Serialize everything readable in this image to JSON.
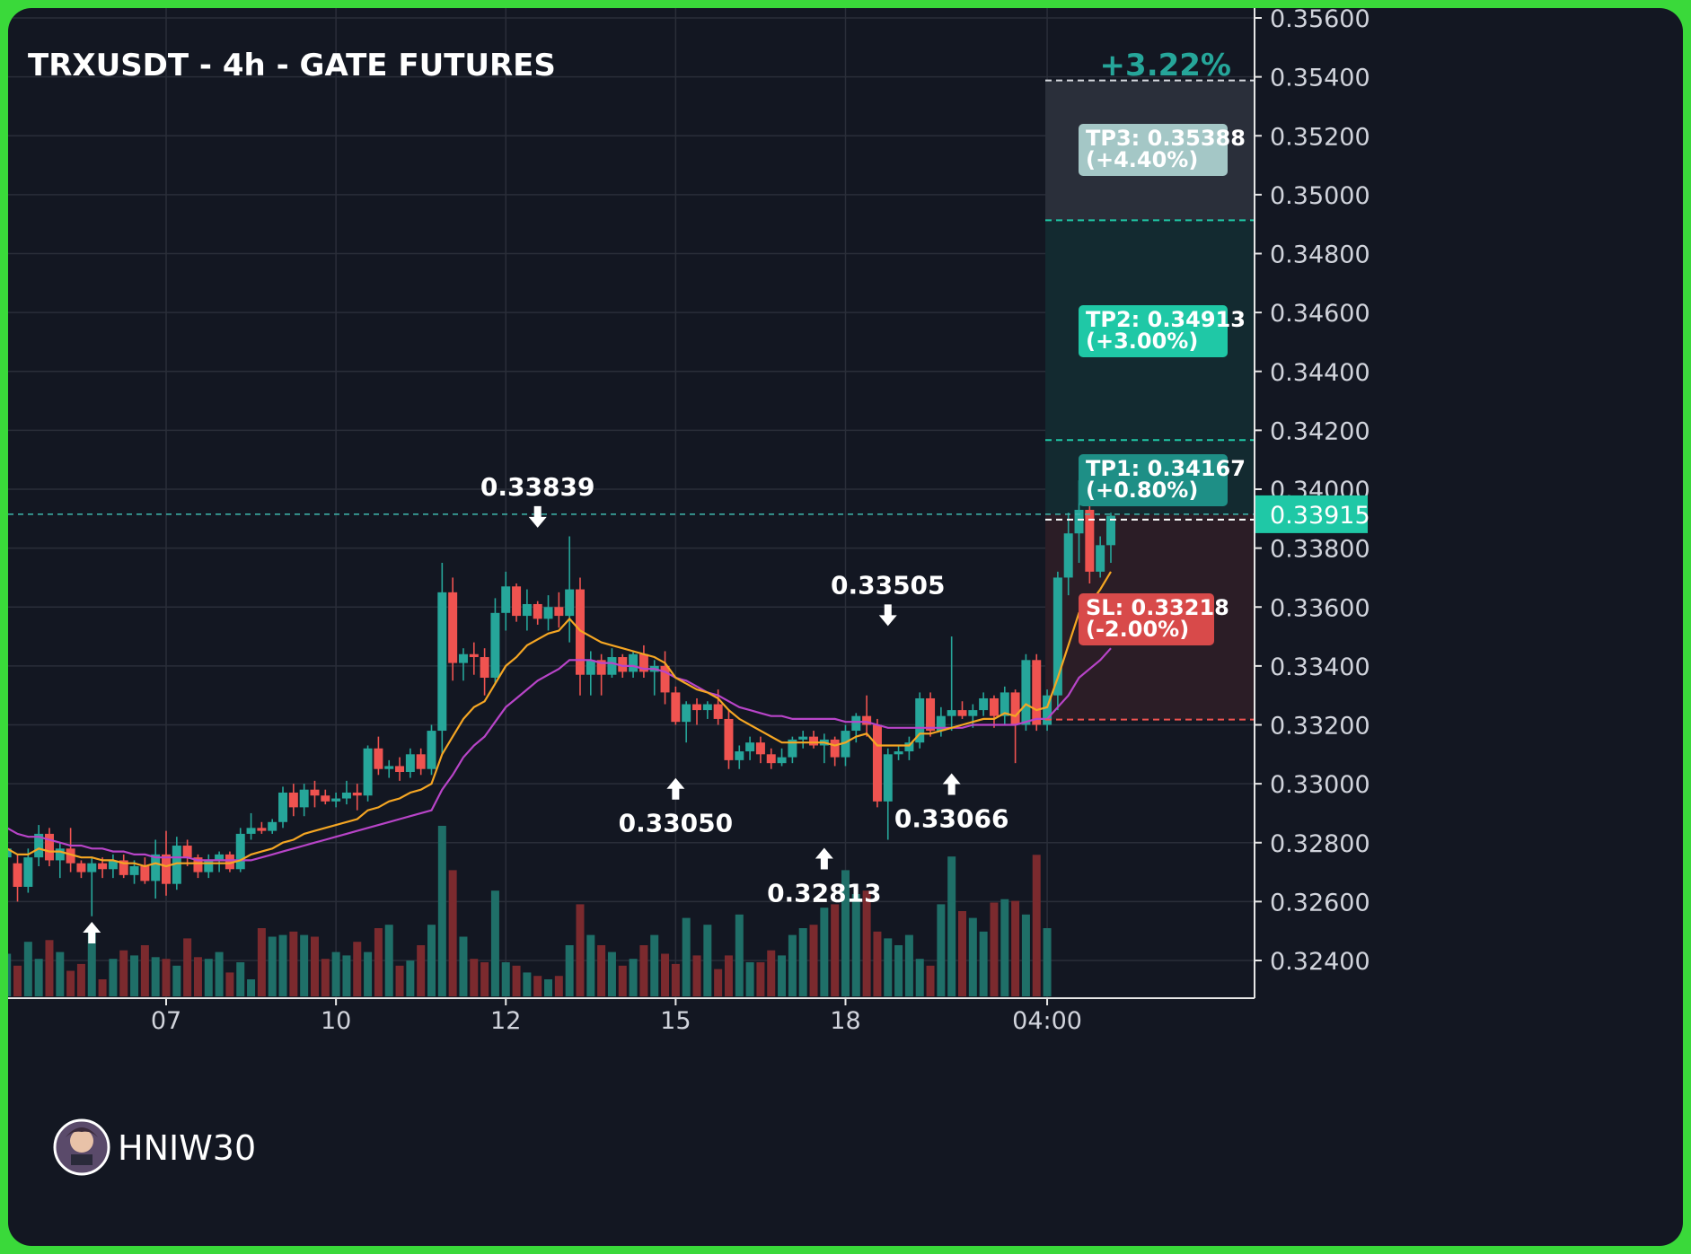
{
  "title": "TRXUSDT - 4h - GATE FUTURES",
  "change_badge": "+3.22%",
  "current_price_label": "0.33915",
  "watermark": "HNIW30",
  "colors": {
    "background": "#131722",
    "frame": "#3ad93a",
    "up": "#26a69a",
    "down": "#ef5350",
    "ema_fast": "#f5a623",
    "ema_slow": "#b844c8",
    "accent": "#1fc8a6"
  },
  "targets": [
    {
      "name": "TP3",
      "price": 0.35388,
      "text": "TP3: 0.35388",
      "pct": "(+4.40%)"
    },
    {
      "name": "TP2",
      "price": 0.34913,
      "text": "TP2: 0.34913",
      "pct": "(+3.00%)"
    },
    {
      "name": "TP1",
      "price": 0.34167,
      "text": "TP1: 0.34167",
      "pct": "(+0.80%)"
    },
    {
      "name": "SL",
      "price": 0.33218,
      "text": "SL: 0.33218",
      "pct": "(-2.00%)"
    }
  ],
  "chart_data": {
    "type": "candlestick",
    "title": "TRXUSDT - 4h - GATE FUTURES",
    "ylim": [
      0.323,
      0.3562
    ],
    "y_ticks": [
      "0.35600",
      "0.35400",
      "0.35200",
      "0.35000",
      "0.34800",
      "0.34600",
      "0.34400",
      "0.34200",
      "0.34000",
      "0.33800",
      "0.33600",
      "0.33400",
      "0.33200",
      "0.33000",
      "0.32800",
      "0.32600",
      "0.32400"
    ],
    "x_ticks": [
      "07",
      "10",
      "12",
      "15",
      "18",
      "04:00"
    ],
    "x_tick_index": [
      15,
      31,
      47,
      63,
      79,
      98
    ],
    "entry_price": 0.33915,
    "current_price": 0.33915,
    "annotations": [
      {
        "text": "0.33839",
        "index": 50,
        "price": 0.33839,
        "kind": "high"
      },
      {
        "text": "0.33050",
        "index": 63,
        "price": 0.3305,
        "kind": "low"
      },
      {
        "text": "0.32813",
        "index": 77,
        "price": 0.32813,
        "kind": "low"
      },
      {
        "text": "0.33505",
        "index": 83,
        "price": 0.33505,
        "kind": "high"
      },
      {
        "text": "0.33066",
        "index": 89,
        "price": 0.33066,
        "kind": "low"
      }
    ],
    "candles": [
      {
        "o": 0.3275,
        "h": 0.3285,
        "l": 0.327,
        "c": 0.3278
      },
      {
        "o": 0.3273,
        "h": 0.3276,
        "l": 0.326,
        "c": 0.3265
      },
      {
        "o": 0.3265,
        "h": 0.3278,
        "l": 0.3263,
        "c": 0.3275
      },
      {
        "o": 0.3275,
        "h": 0.3286,
        "l": 0.3272,
        "c": 0.3283
      },
      {
        "o": 0.3283,
        "h": 0.3285,
        "l": 0.3272,
        "c": 0.3274
      },
      {
        "o": 0.3274,
        "h": 0.328,
        "l": 0.3268,
        "c": 0.3278
      },
      {
        "o": 0.3278,
        "h": 0.3285,
        "l": 0.327,
        "c": 0.3273
      },
      {
        "o": 0.3273,
        "h": 0.3274,
        "l": 0.3268,
        "c": 0.327
      },
      {
        "o": 0.327,
        "h": 0.3275,
        "l": 0.3255,
        "c": 0.3273
      },
      {
        "o": 0.3273,
        "h": 0.3275,
        "l": 0.3268,
        "c": 0.3271
      },
      {
        "o": 0.3271,
        "h": 0.3276,
        "l": 0.3268,
        "c": 0.3274
      },
      {
        "o": 0.3274,
        "h": 0.3276,
        "l": 0.3268,
        "c": 0.3269
      },
      {
        "o": 0.3269,
        "h": 0.3274,
        "l": 0.3266,
        "c": 0.3272
      },
      {
        "o": 0.3272,
        "h": 0.3275,
        "l": 0.3266,
        "c": 0.3267
      },
      {
        "o": 0.3267,
        "h": 0.3281,
        "l": 0.3261,
        "c": 0.3276
      },
      {
        "o": 0.3276,
        "h": 0.3284,
        "l": 0.3262,
        "c": 0.3266
      },
      {
        "o": 0.3266,
        "h": 0.3282,
        "l": 0.3264,
        "c": 0.3279
      },
      {
        "o": 0.3279,
        "h": 0.3281,
        "l": 0.3272,
        "c": 0.3275
      },
      {
        "o": 0.3275,
        "h": 0.3276,
        "l": 0.3268,
        "c": 0.327
      },
      {
        "o": 0.327,
        "h": 0.3276,
        "l": 0.3268,
        "c": 0.3274
      },
      {
        "o": 0.3274,
        "h": 0.3277,
        "l": 0.327,
        "c": 0.3276
      },
      {
        "o": 0.3276,
        "h": 0.3277,
        "l": 0.327,
        "c": 0.3271
      },
      {
        "o": 0.3271,
        "h": 0.3285,
        "l": 0.327,
        "c": 0.3283
      },
      {
        "o": 0.3283,
        "h": 0.329,
        "l": 0.3281,
        "c": 0.3285
      },
      {
        "o": 0.3285,
        "h": 0.3287,
        "l": 0.3283,
        "c": 0.3284
      },
      {
        "o": 0.3284,
        "h": 0.3288,
        "l": 0.3283,
        "c": 0.3287
      },
      {
        "o": 0.3287,
        "h": 0.3299,
        "l": 0.3285,
        "c": 0.3297
      },
      {
        "o": 0.3297,
        "h": 0.33,
        "l": 0.3289,
        "c": 0.3292
      },
      {
        "o": 0.3292,
        "h": 0.33,
        "l": 0.3289,
        "c": 0.3298
      },
      {
        "o": 0.3298,
        "h": 0.3301,
        "l": 0.3292,
        "c": 0.3296
      },
      {
        "o": 0.3296,
        "h": 0.3298,
        "l": 0.3293,
        "c": 0.3294
      },
      {
        "o": 0.3294,
        "h": 0.3297,
        "l": 0.3292,
        "c": 0.3295
      },
      {
        "o": 0.3295,
        "h": 0.3301,
        "l": 0.3293,
        "c": 0.3297
      },
      {
        "o": 0.3297,
        "h": 0.33,
        "l": 0.3291,
        "c": 0.3296
      },
      {
        "o": 0.3296,
        "h": 0.3313,
        "l": 0.3294,
        "c": 0.3312
      },
      {
        "o": 0.3312,
        "h": 0.3316,
        "l": 0.3303,
        "c": 0.3305
      },
      {
        "o": 0.3305,
        "h": 0.3308,
        "l": 0.3302,
        "c": 0.3306
      },
      {
        "o": 0.3306,
        "h": 0.3309,
        "l": 0.3301,
        "c": 0.3304
      },
      {
        "o": 0.3304,
        "h": 0.3312,
        "l": 0.3302,
        "c": 0.331
      },
      {
        "o": 0.331,
        "h": 0.3312,
        "l": 0.3303,
        "c": 0.3305
      },
      {
        "o": 0.3305,
        "h": 0.332,
        "l": 0.3303,
        "c": 0.3318
      },
      {
        "o": 0.3318,
        "h": 0.3375,
        "l": 0.331,
        "c": 0.3365
      },
      {
        "o": 0.3365,
        "h": 0.337,
        "l": 0.3335,
        "c": 0.3341
      },
      {
        "o": 0.3341,
        "h": 0.3346,
        "l": 0.3335,
        "c": 0.3344
      },
      {
        "o": 0.3344,
        "h": 0.3348,
        "l": 0.3337,
        "c": 0.3343
      },
      {
        "o": 0.3343,
        "h": 0.3346,
        "l": 0.333,
        "c": 0.3336
      },
      {
        "o": 0.3336,
        "h": 0.3363,
        "l": 0.3334,
        "c": 0.3358
      },
      {
        "o": 0.3358,
        "h": 0.3372,
        "l": 0.3352,
        "c": 0.3367
      },
      {
        "o": 0.3367,
        "h": 0.3368,
        "l": 0.3355,
        "c": 0.3357
      },
      {
        "o": 0.3357,
        "h": 0.3366,
        "l": 0.3352,
        "c": 0.3361
      },
      {
        "o": 0.3361,
        "h": 0.3362,
        "l": 0.3354,
        "c": 0.3356
      },
      {
        "o": 0.3356,
        "h": 0.3364,
        "l": 0.3352,
        "c": 0.336
      },
      {
        "o": 0.336,
        "h": 0.3365,
        "l": 0.3353,
        "c": 0.3357
      },
      {
        "o": 0.3357,
        "h": 0.3384,
        "l": 0.3348,
        "c": 0.3366
      },
      {
        "o": 0.3366,
        "h": 0.337,
        "l": 0.333,
        "c": 0.3337
      },
      {
        "o": 0.3337,
        "h": 0.3345,
        "l": 0.333,
        "c": 0.3342
      },
      {
        "o": 0.3342,
        "h": 0.3344,
        "l": 0.333,
        "c": 0.3337
      },
      {
        "o": 0.3337,
        "h": 0.3346,
        "l": 0.3336,
        "c": 0.3343
      },
      {
        "o": 0.3343,
        "h": 0.3344,
        "l": 0.3336,
        "c": 0.3338
      },
      {
        "o": 0.3338,
        "h": 0.3345,
        "l": 0.3336,
        "c": 0.3344
      },
      {
        "o": 0.3344,
        "h": 0.3347,
        "l": 0.3336,
        "c": 0.3338
      },
      {
        "o": 0.3338,
        "h": 0.3342,
        "l": 0.333,
        "c": 0.334
      },
      {
        "o": 0.334,
        "h": 0.3345,
        "l": 0.3327,
        "c": 0.3331
      },
      {
        "o": 0.3331,
        "h": 0.3333,
        "l": 0.332,
        "c": 0.3321
      },
      {
        "o": 0.3321,
        "h": 0.3328,
        "l": 0.3314,
        "c": 0.3327
      },
      {
        "o": 0.3327,
        "h": 0.3329,
        "l": 0.332,
        "c": 0.3325
      },
      {
        "o": 0.3325,
        "h": 0.3328,
        "l": 0.3322,
        "c": 0.3327
      },
      {
        "o": 0.3327,
        "h": 0.3332,
        "l": 0.332,
        "c": 0.3322
      },
      {
        "o": 0.3322,
        "h": 0.3325,
        "l": 0.3305,
        "c": 0.3308
      },
      {
        "o": 0.3308,
        "h": 0.3313,
        "l": 0.3305,
        "c": 0.3311
      },
      {
        "o": 0.3311,
        "h": 0.3316,
        "l": 0.3308,
        "c": 0.3314
      },
      {
        "o": 0.3314,
        "h": 0.3316,
        "l": 0.3307,
        "c": 0.331
      },
      {
        "o": 0.331,
        "h": 0.3312,
        "l": 0.3305,
        "c": 0.3307
      },
      {
        "o": 0.3307,
        "h": 0.3312,
        "l": 0.3306,
        "c": 0.3309
      },
      {
        "o": 0.3309,
        "h": 0.3316,
        "l": 0.3307,
        "c": 0.3315
      },
      {
        "o": 0.3315,
        "h": 0.3318,
        "l": 0.3312,
        "c": 0.3316
      },
      {
        "o": 0.3316,
        "h": 0.3318,
        "l": 0.3312,
        "c": 0.3313
      },
      {
        "o": 0.3313,
        "h": 0.3317,
        "l": 0.3307,
        "c": 0.3315
      },
      {
        "o": 0.3315,
        "h": 0.3316,
        "l": 0.3306,
        "c": 0.3309
      },
      {
        "o": 0.3309,
        "h": 0.332,
        "l": 0.3306,
        "c": 0.3318
      },
      {
        "o": 0.3318,
        "h": 0.3324,
        "l": 0.3314,
        "c": 0.3323
      },
      {
        "o": 0.3323,
        "h": 0.333,
        "l": 0.3316,
        "c": 0.332
      },
      {
        "o": 0.332,
        "h": 0.3322,
        "l": 0.3292,
        "c": 0.3294
      },
      {
        "o": 0.3294,
        "h": 0.3312,
        "l": 0.3281,
        "c": 0.331
      },
      {
        "o": 0.331,
        "h": 0.3313,
        "l": 0.3308,
        "c": 0.3311
      },
      {
        "o": 0.3311,
        "h": 0.3316,
        "l": 0.3308,
        "c": 0.3314
      },
      {
        "o": 0.3314,
        "h": 0.3331,
        "l": 0.3312,
        "c": 0.3329
      },
      {
        "o": 0.3329,
        "h": 0.3331,
        "l": 0.3316,
        "c": 0.3318
      },
      {
        "o": 0.3318,
        "h": 0.3326,
        "l": 0.3316,
        "c": 0.3323
      },
      {
        "o": 0.3323,
        "h": 0.335,
        "l": 0.3318,
        "c": 0.3325
      },
      {
        "o": 0.3325,
        "h": 0.3328,
        "l": 0.3322,
        "c": 0.3323
      },
      {
        "o": 0.3323,
        "h": 0.3327,
        "l": 0.3319,
        "c": 0.3325
      },
      {
        "o": 0.3325,
        "h": 0.3331,
        "l": 0.3323,
        "c": 0.3329
      },
      {
        "o": 0.3329,
        "h": 0.333,
        "l": 0.3319,
        "c": 0.3323
      },
      {
        "o": 0.3323,
        "h": 0.3333,
        "l": 0.332,
        "c": 0.3331
      },
      {
        "o": 0.3331,
        "h": 0.3332,
        "l": 0.3307,
        "c": 0.332
      },
      {
        "o": 0.332,
        "h": 0.3344,
        "l": 0.3318,
        "c": 0.3342
      },
      {
        "o": 0.3342,
        "h": 0.3344,
        "l": 0.3318,
        "c": 0.332
      },
      {
        "o": 0.332,
        "h": 0.3332,
        "l": 0.3318,
        "c": 0.333
      },
      {
        "o": 0.333,
        "h": 0.3372,
        "l": 0.3325,
        "c": 0.337
      },
      {
        "o": 0.337,
        "h": 0.3392,
        "l": 0.3364,
        "c": 0.3385
      },
      {
        "o": 0.3385,
        "h": 0.3403,
        "l": 0.3375,
        "c": 0.3393
      },
      {
        "o": 0.3393,
        "h": 0.3402,
        "l": 0.3368,
        "c": 0.3372
      },
      {
        "o": 0.3372,
        "h": 0.3384,
        "l": 0.337,
        "c": 0.3381
      },
      {
        "o": 0.3381,
        "h": 0.3392,
        "l": 0.3375,
        "c": 0.3391
      }
    ],
    "volume": [
      0.25,
      0.18,
      0.32,
      0.22,
      0.33,
      0.26,
      0.15,
      0.19,
      0.38,
      0.1,
      0.22,
      0.27,
      0.24,
      0.3,
      0.23,
      0.22,
      0.18,
      0.34,
      0.23,
      0.22,
      0.26,
      0.14,
      0.2,
      0.1,
      0.4,
      0.35,
      0.36,
      0.38,
      0.36,
      0.35,
      0.22,
      0.26,
      0.24,
      0.32,
      0.26,
      0.4,
      0.42,
      0.18,
      0.21,
      0.3,
      0.42,
      1.0,
      0.74,
      0.35,
      0.22,
      0.2,
      0.62,
      0.2,
      0.18,
      0.14,
      0.12,
      0.1,
      0.12,
      0.3,
      0.54,
      0.36,
      0.3,
      0.26,
      0.18,
      0.22,
      0.3,
      0.36,
      0.25,
      0.19,
      0.46,
      0.24,
      0.42,
      0.16,
      0.24,
      0.48,
      0.2,
      0.2,
      0.27,
      0.24,
      0.36,
      0.4,
      0.42,
      0.52,
      0.54,
      0.74,
      0.6,
      0.62,
      0.38,
      0.34,
      0.3,
      0.36,
      0.22,
      0.18,
      0.54,
      0.82,
      0.5,
      0.46,
      0.38,
      0.55,
      0.57,
      0.56,
      0.48,
      0.83,
      0.4
    ],
    "ema_fast": [
      0.3278,
      0.3276,
      0.3276,
      0.3278,
      0.3277,
      0.3277,
      0.3276,
      0.3275,
      0.3275,
      0.3274,
      0.3274,
      0.3273,
      0.3273,
      0.3272,
      0.3273,
      0.3272,
      0.3273,
      0.3273,
      0.3273,
      0.3273,
      0.3273,
      0.3273,
      0.3274,
      0.3276,
      0.3277,
      0.3278,
      0.328,
      0.3281,
      0.3283,
      0.3284,
      0.3285,
      0.3286,
      0.3287,
      0.3288,
      0.3291,
      0.3292,
      0.3294,
      0.3295,
      0.3297,
      0.3298,
      0.33,
      0.331,
      0.3316,
      0.3322,
      0.3326,
      0.3328,
      0.3334,
      0.334,
      0.3343,
      0.3347,
      0.3349,
      0.3351,
      0.3352,
      0.3356,
      0.3352,
      0.335,
      0.3348,
      0.3347,
      0.3346,
      0.3345,
      0.3344,
      0.3343,
      0.3341,
      0.3336,
      0.3334,
      0.3332,
      0.3331,
      0.3329,
      0.3325,
      0.3322,
      0.332,
      0.3318,
      0.3316,
      0.3314,
      0.3314,
      0.3314,
      0.3314,
      0.3314,
      0.3313,
      0.3314,
      0.3316,
      0.3317,
      0.3313,
      0.3313,
      0.3313,
      0.3313,
      0.3317,
      0.3317,
      0.3318,
      0.3319,
      0.332,
      0.3321,
      0.3322,
      0.3322,
      0.3324,
      0.3323,
      0.3327,
      0.3325,
      0.3326,
      0.3336,
      0.3347,
      0.3358,
      0.3361,
      0.3366,
      0.3372
    ],
    "ema_slow": [
      0.3285,
      0.3283,
      0.3282,
      0.3282,
      0.3281,
      0.328,
      0.3279,
      0.3279,
      0.3278,
      0.3278,
      0.3277,
      0.3277,
      0.3276,
      0.3276,
      0.3275,
      0.3275,
      0.3275,
      0.3275,
      0.3274,
      0.3274,
      0.3274,
      0.3274,
      0.3274,
      0.3274,
      0.3275,
      0.3276,
      0.3277,
      0.3278,
      0.3279,
      0.328,
      0.3281,
      0.3282,
      0.3283,
      0.3284,
      0.3285,
      0.3286,
      0.3287,
      0.3288,
      0.3289,
      0.329,
      0.3291,
      0.3298,
      0.3303,
      0.3309,
      0.3313,
      0.3316,
      0.3321,
      0.3326,
      0.3329,
      0.3332,
      0.3335,
      0.3337,
      0.3339,
      0.3342,
      0.3342,
      0.3342,
      0.3341,
      0.3341,
      0.334,
      0.334,
      0.3339,
      0.3339,
      0.3338,
      0.3336,
      0.3335,
      0.3333,
      0.3331,
      0.333,
      0.3328,
      0.3326,
      0.3325,
      0.3324,
      0.3323,
      0.3323,
      0.3322,
      0.3322,
      0.3322,
      0.3322,
      0.3322,
      0.3321,
      0.3321,
      0.3321,
      0.332,
      0.3319,
      0.3319,
      0.3319,
      0.3319,
      0.3319,
      0.3319,
      0.3319,
      0.3319,
      0.332,
      0.332,
      0.332,
      0.332,
      0.332,
      0.3321,
      0.3322,
      0.3322,
      0.3326,
      0.333,
      0.3336,
      0.3339,
      0.3342,
      0.3346
    ]
  }
}
